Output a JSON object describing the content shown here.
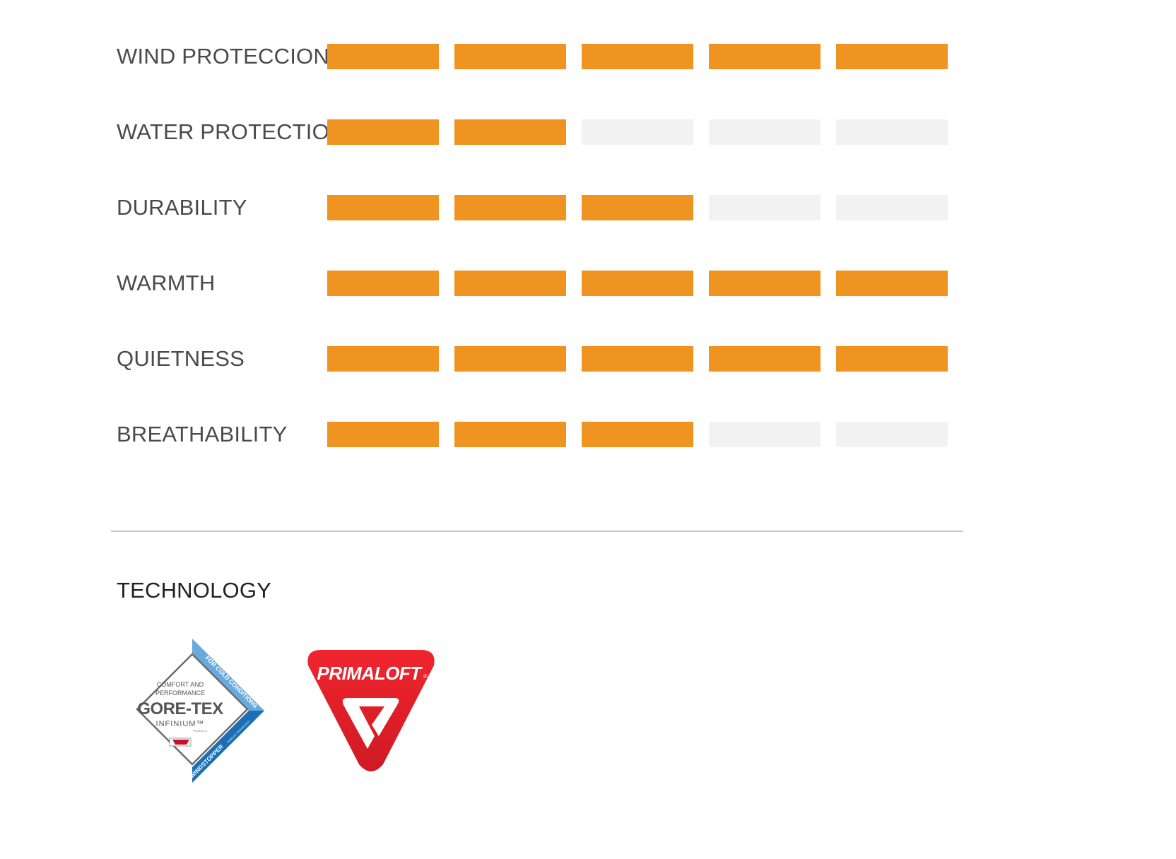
{
  "ratings": {
    "max": 5,
    "items": [
      {
        "label": "WIND PROTECCION",
        "value": 5
      },
      {
        "label": "WATER PROTECTION",
        "value": 2
      },
      {
        "label": "DURABILITY",
        "value": 3
      },
      {
        "label": "WARMTH",
        "value": 5
      },
      {
        "label": "QUIETNESS",
        "value": 5
      },
      {
        "label": "BREATHABILITY",
        "value": 3
      }
    ]
  },
  "colors": {
    "filled": "#ef9421",
    "empty": "#f2f2f2",
    "gore_blue": "#1a6fb5",
    "gore_light_blue": "#6aa9dc",
    "primaloft_red": "#e2202a"
  },
  "technology": {
    "title": "TECHNOLOGY",
    "logos": [
      {
        "icon": "gore-tex-badge-icon",
        "brand": "GORE-TEX",
        "line1": "COMFORT AND",
        "line2": "PERFORMANCE",
        "sub": "INFINIUM™",
        "products": "PRODUCTS",
        "band_top": "FOR COLD CONDITIONS",
        "band_bottom": "WINDSTOPPER",
        "band_small": "PRODUCT TECHNOLOGY"
      },
      {
        "icon": "primaloft-badge-icon",
        "brand": "PRIMALOFT"
      }
    ]
  }
}
